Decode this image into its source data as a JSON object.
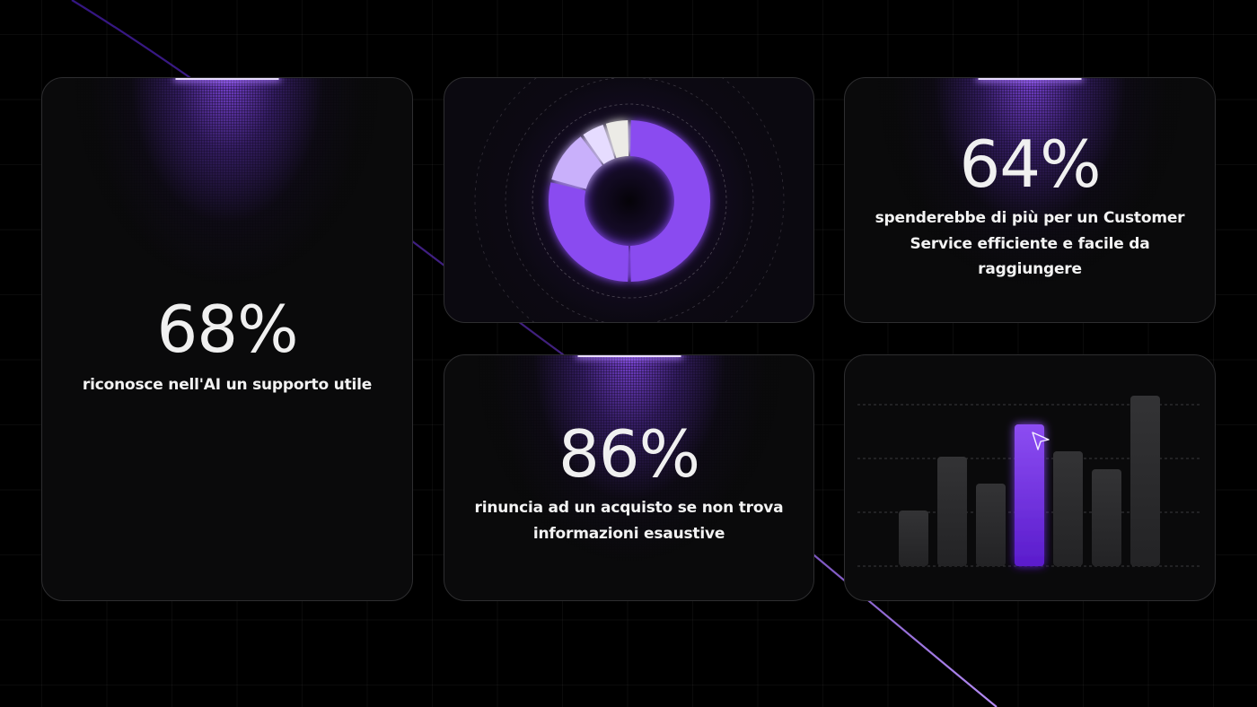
{
  "theme": {
    "background": "#000000",
    "card_background": "#0a0a0b",
    "card_border": "#2e2e30",
    "accent": "#8a4bf0",
    "accent_light": "#c9b0fb",
    "accent_lighter": "#e6dcff",
    "neutral_light": "#ecebe6",
    "bar_gray": "#2b2b2d"
  },
  "cards": {
    "ai_support": {
      "value": "68%",
      "description": "riconosce nell'AI un supporto utile"
    },
    "customer_service": {
      "value": "64%",
      "description_lines": [
        "spenderebbe di più per un Customer",
        "Service efficiente e facile da",
        "raggiungere"
      ]
    },
    "purchase_abandon": {
      "value": "86%",
      "description_lines": [
        "rinuncia ad un acquisto se non trova",
        "informazioni esaustive"
      ]
    }
  },
  "icons": {
    "cursor": "cursor-arrow-icon"
  },
  "chart_data": [
    {
      "type": "pie",
      "title": "",
      "variant": "donut",
      "labels": [
        "segment-1",
        "segment-2",
        "segment-3",
        "segment-4",
        "segment-5"
      ],
      "values": [
        50,
        29,
        11,
        5,
        5
      ],
      "colors": [
        "#8a4bf0",
        "#8a4bf0",
        "#c9b0fb",
        "#e6dcff",
        "#ecebe6"
      ],
      "legend": "none"
    },
    {
      "type": "bar",
      "title": "",
      "categories": [
        "1",
        "2",
        "3",
        "4",
        "5",
        "6",
        "7"
      ],
      "values": [
        31,
        61,
        46,
        79,
        64,
        54,
        95
      ],
      "highlighted_index": 3,
      "colors": [
        "#2b2b2d",
        "#2b2b2d",
        "#2b2b2d",
        "#7a35e6",
        "#2b2b2d",
        "#2b2b2d",
        "#2b2b2d"
      ],
      "xlabel": "",
      "ylabel": "",
      "ylim": [
        0,
        90
      ],
      "grid": true,
      "gridlines": [
        0,
        30,
        60,
        90
      ]
    }
  ]
}
